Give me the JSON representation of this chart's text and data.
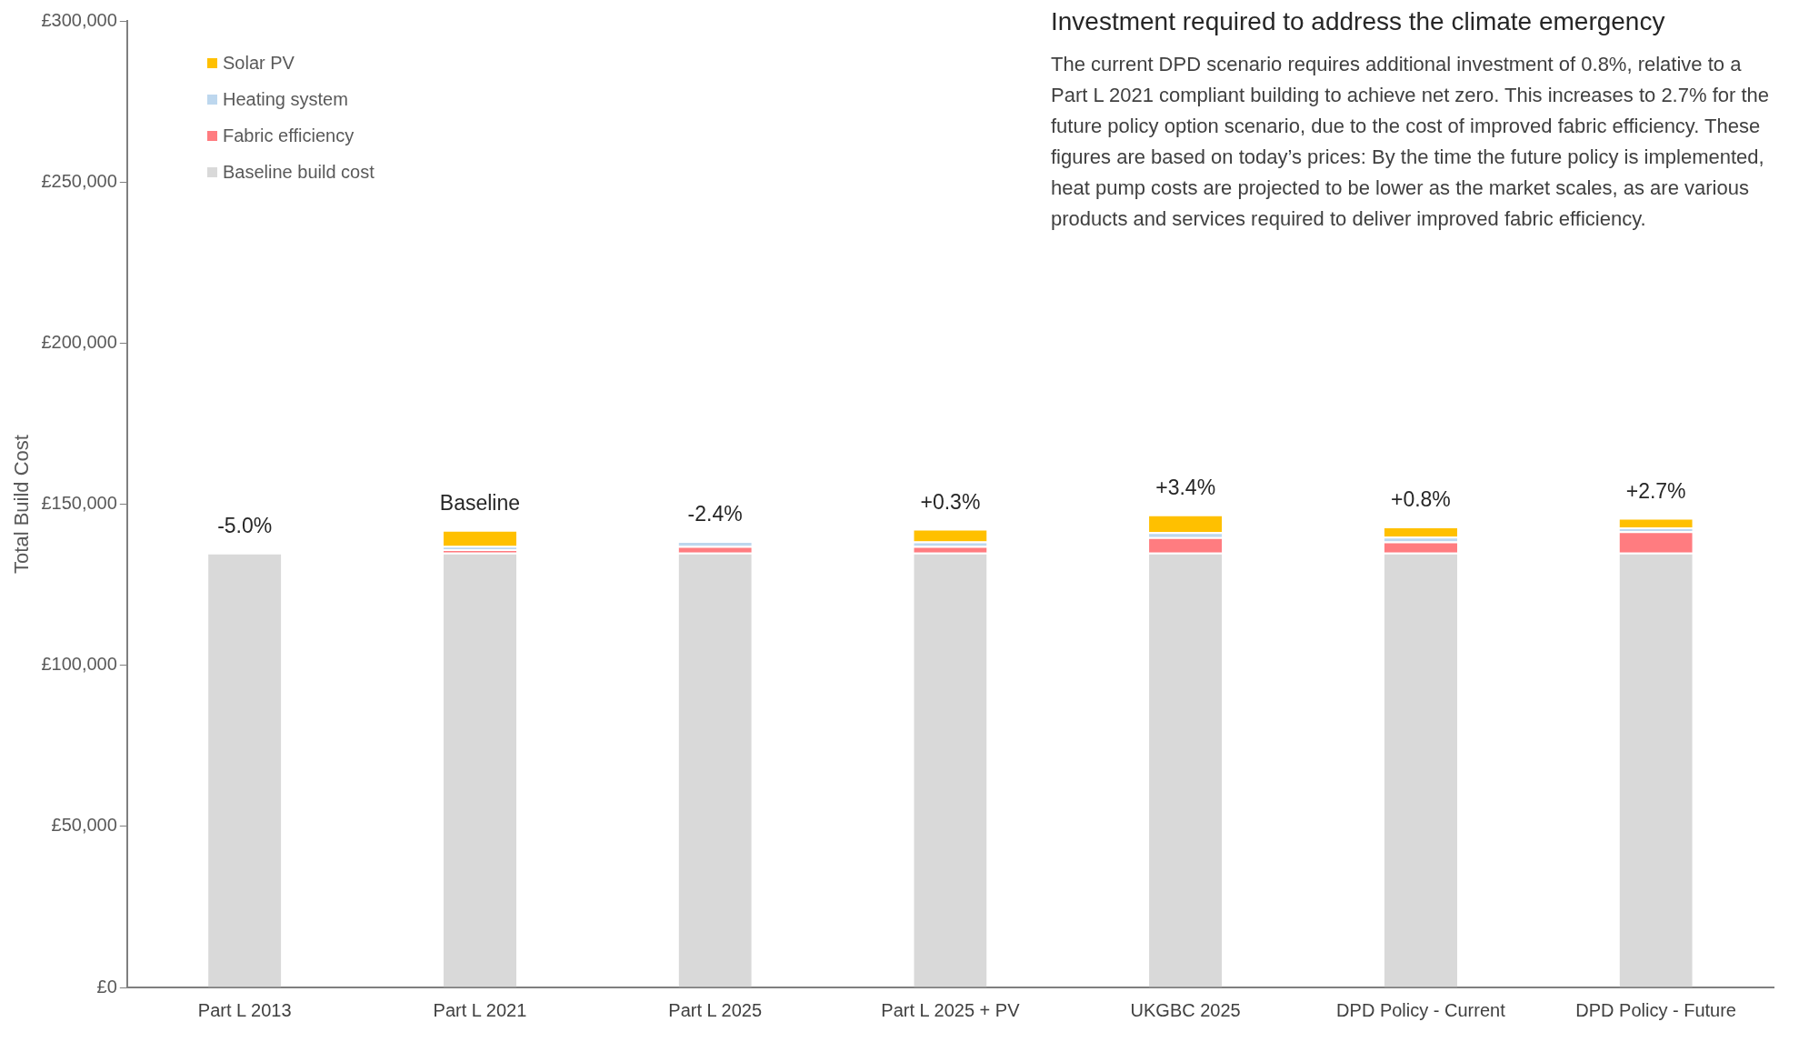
{
  "chart_data": {
    "type": "bar",
    "stacked": true,
    "title": "Investment required to address the climate emergency",
    "subtitle": "The current DPD scenario requires additional investment of 0.8%, relative to a Part L 2021 compliant building to achieve net zero. This increases to 2.7% for the future policy option scenario, due to the cost of improved fabric efficiency. These figures are based on today’s prices: By the time the future policy is implemented, heat pump costs are projected to be lower as the market scales, as are various products and services required to deliver improved fabric efficiency.",
    "ylabel": "Total Build Cost",
    "categories": [
      "Part L 2013",
      "Part L 2021",
      "Part L 2025",
      "Part L 2025 + PV",
      "UKGBC 2025",
      "DPD Policy - Current",
      "DPD Policy - Future"
    ],
    "series": [
      {
        "name": "Baseline build cost",
        "color": "#d9d9d9",
        "values": [
          135000,
          135000,
          135000,
          135000,
          135000,
          135000,
          135000
        ]
      },
      {
        "name": "Fabric efficiency",
        "color": "#ff7c80",
        "values": [
          0,
          1000,
          2000,
          2000,
          4800,
          3400,
          6600
        ]
      },
      {
        "name": "Heating system",
        "color": "#bdd7ee",
        "values": [
          0,
          1000,
          1600,
          1400,
          1500,
          1500,
          1200
        ]
      },
      {
        "name": "Solar PV",
        "color": "#ffc000",
        "values": [
          0,
          5000,
          0,
          4000,
          5500,
          3200,
          3000
        ]
      }
    ],
    "ylim": [
      0,
      300000
    ],
    "yticks": [
      {
        "value": 0,
        "label": "£0"
      },
      {
        "value": 50000,
        "label": "£50,000"
      },
      {
        "value": 100000,
        "label": "£100,000"
      },
      {
        "value": 150000,
        "label": "£150,000"
      },
      {
        "value": 200000,
        "label": "£200,000"
      },
      {
        "value": 250000,
        "label": "£250,000"
      },
      {
        "value": 300000,
        "label": "£300,000"
      }
    ],
    "grid": false,
    "legend": "top left",
    "value_labels": [
      "-5.0%",
      "Baseline",
      "-2.4%",
      "+0.3%",
      "+3.4%",
      "+0.8%",
      "+2.7%"
    ]
  }
}
